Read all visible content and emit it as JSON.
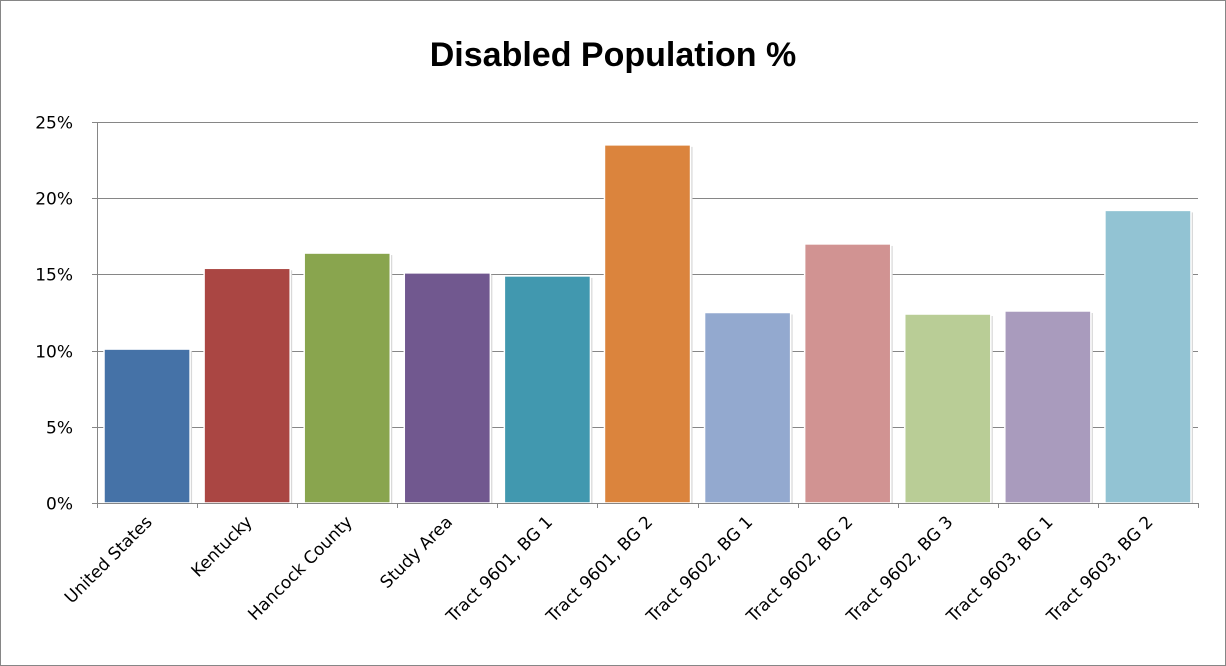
{
  "chart_data": {
    "type": "bar",
    "title": "Disabled Population %",
    "xlabel": "",
    "ylabel": "",
    "categories": [
      "United States",
      "Kentucky",
      "Hancock County",
      "Study Area",
      "Tract 9601, BG 1",
      "Tract 9601, BG 2",
      "Tract 9602, BG 1",
      "Tract 9602, BG 2",
      "Tract 9602, BG 3",
      "Tract 9603, BG 1",
      "Tract 9603, BG 2"
    ],
    "values": [
      10.1,
      15.4,
      16.4,
      15.1,
      14.9,
      23.5,
      12.5,
      17.0,
      12.4,
      12.6,
      19.2
    ],
    "ylim": [
      0,
      25
    ],
    "yticks": [
      0,
      5,
      10,
      15,
      20,
      25
    ],
    "ytick_labels": [
      "0%",
      "5%",
      "10%",
      "15%",
      "20%",
      "25%"
    ],
    "grid": true,
    "legend": "none",
    "colors": [
      "#4572a7",
      "#aa4643",
      "#89a54e",
      "#71588f",
      "#4198af",
      "#db843d",
      "#93a9cf",
      "#d19392",
      "#b9cd96",
      "#a99bbd",
      "#92c3d3"
    ]
  }
}
